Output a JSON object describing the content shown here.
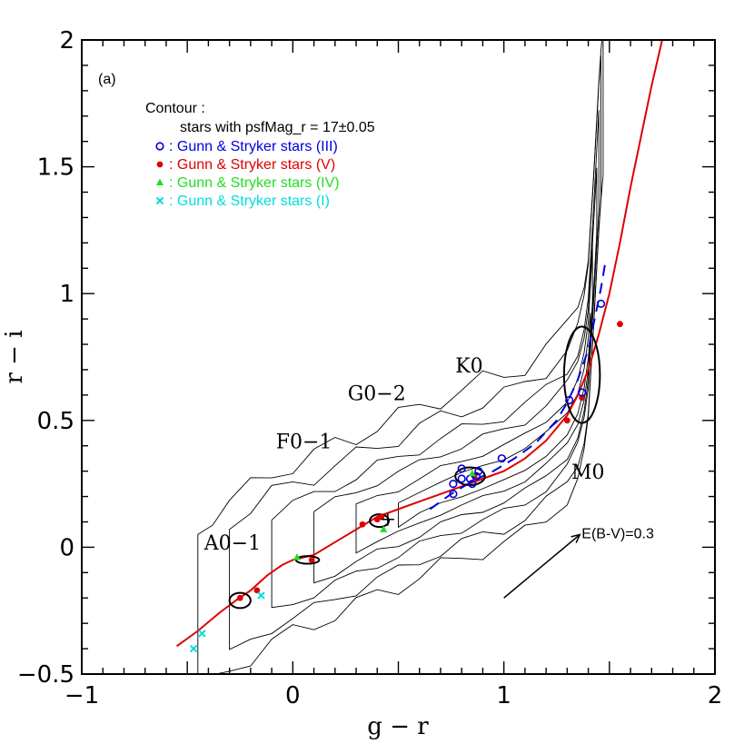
{
  "chart_data": {
    "type": "scatter",
    "panel_label": "(a)",
    "xlabel": "g − r",
    "ylabel": "r − i",
    "xlim": [
      -1,
      2
    ],
    "ylim": [
      -0.5,
      2
    ],
    "x_ticks": [
      -1,
      0,
      1,
      2
    ],
    "x_tick_labels": [
      "−1",
      "0",
      "1",
      "2"
    ],
    "y_ticks": [
      -0.5,
      0,
      0.5,
      1,
      1.5,
      2
    ],
    "y_tick_labels": [
      "−0.5",
      "0",
      "0.5",
      "1",
      "1.5",
      "2"
    ],
    "grid": false,
    "legend": {
      "placement": "top-left",
      "contour_title": "Contour :",
      "contour_desc": "stars with psfMag_r = 17±0.05",
      "entries": [
        {
          "marker": "open-circle",
          "symbol": "o",
          "label": ": Gunn & Stryker stars (III)",
          "color": "#0000dd"
        },
        {
          "marker": "filled-circle",
          "symbol": "•",
          "label": ": Gunn & Stryker stars (V)",
          "color": "#e00000"
        },
        {
          "marker": "triangle",
          "symbol": "▲",
          "label": ": Gunn & Stryker stars (IV)",
          "color": "#22dd22"
        },
        {
          "marker": "cross",
          "symbol": "×",
          "label": ": Gunn & Stryker stars (I)",
          "color": "#00dddd"
        }
      ]
    },
    "spectral_labels": [
      {
        "text": "A0−1",
        "x": -0.42,
        "y": -0.01
      },
      {
        "text": "F0−1",
        "x": -0.08,
        "y": 0.39
      },
      {
        "text": "G0−2",
        "x": 0.26,
        "y": 0.58
      },
      {
        "text": "K0",
        "x": 0.77,
        "y": 0.69
      },
      {
        "text": "M0",
        "x": 1.32,
        "y": 0.27
      }
    ],
    "reddening_vector": {
      "label": "E(B-V)=0.3",
      "from": [
        1.0,
        -0.2
      ],
      "to": [
        1.36,
        0.05
      ]
    },
    "series": [
      {
        "name": "Gunn & Stryker stars (V)",
        "marker": "filled-circle",
        "color": "#e00000",
        "points": [
          [
            -0.25,
            -0.2
          ],
          [
            -0.17,
            -0.17
          ],
          [
            0.09,
            -0.05
          ],
          [
            0.33,
            0.09
          ],
          [
            0.4,
            0.11
          ],
          [
            0.42,
            0.12
          ],
          [
            0.86,
            0.28
          ],
          [
            1.3,
            0.5
          ],
          [
            1.37,
            0.59
          ],
          [
            1.55,
            0.88
          ]
        ]
      },
      {
        "name": "Gunn & Stryker stars (III)",
        "marker": "open-circle",
        "color": "#0000dd",
        "points": [
          [
            0.76,
            0.21
          ],
          [
            0.76,
            0.25
          ],
          [
            0.8,
            0.27
          ],
          [
            0.8,
            0.31
          ],
          [
            0.84,
            0.27
          ],
          [
            0.85,
            0.25
          ],
          [
            0.87,
            0.28
          ],
          [
            0.88,
            0.3
          ],
          [
            0.99,
            0.35
          ],
          [
            1.31,
            0.58
          ],
          [
            1.37,
            0.61
          ],
          [
            1.46,
            0.96
          ]
        ]
      },
      {
        "name": "Gunn & Stryker stars (IV)",
        "marker": "triangle",
        "color": "#22dd22",
        "points": [
          [
            0.02,
            -0.04
          ],
          [
            0.43,
            0.07
          ],
          [
            0.85,
            0.29
          ]
        ]
      },
      {
        "name": "Gunn & Stryker stars (I)",
        "marker": "cross",
        "color": "#00dddd",
        "points": [
          [
            -0.47,
            -0.4
          ],
          [
            -0.43,
            -0.34
          ],
          [
            -0.15,
            -0.19
          ]
        ]
      }
    ],
    "main_sequence_locus": {
      "color": "#e00000",
      "style": "solid",
      "x": [
        -0.55,
        -0.45,
        -0.35,
        -0.27,
        -0.2,
        -0.12,
        -0.05,
        0.0,
        0.05,
        0.1,
        0.2,
        0.3,
        0.4,
        0.5,
        0.6,
        0.7,
        0.8,
        0.9,
        1.0,
        1.1,
        1.2,
        1.3,
        1.35,
        1.4,
        1.45,
        1.5,
        1.55,
        1.6,
        1.65,
        1.7,
        1.75
      ],
      "y": [
        -0.39,
        -0.33,
        -0.26,
        -0.21,
        -0.17,
        -0.11,
        -0.07,
        -0.05,
        -0.04,
        -0.03,
        0.02,
        0.07,
        0.12,
        0.15,
        0.18,
        0.21,
        0.24,
        0.27,
        0.3,
        0.35,
        0.42,
        0.52,
        0.6,
        0.7,
        0.84,
        1.0,
        1.2,
        1.42,
        1.62,
        1.82,
        2.0
      ]
    },
    "giant_locus": {
      "color": "#0000dd",
      "style": "dashed",
      "x": [
        0.65,
        0.75,
        0.85,
        0.95,
        1.05,
        1.15,
        1.25,
        1.3,
        1.35,
        1.4,
        1.43,
        1.46,
        1.48
      ],
      "y": [
        0.15,
        0.21,
        0.26,
        0.3,
        0.35,
        0.41,
        0.5,
        0.57,
        0.66,
        0.78,
        0.9,
        1.02,
        1.12
      ]
    },
    "error_ellipses": [
      {
        "cx": -0.25,
        "cy": -0.21,
        "rx": 0.05,
        "ry": 0.03,
        "angle": 0
      },
      {
        "cx": 0.07,
        "cy": -0.05,
        "rx": 0.055,
        "ry": 0.015,
        "angle": 0
      },
      {
        "cx": 0.41,
        "cy": 0.105,
        "rx": 0.045,
        "ry": 0.025,
        "angle": 0
      },
      {
        "cx": 0.84,
        "cy": 0.28,
        "rx": 0.07,
        "ry": 0.035,
        "angle": 0
      },
      {
        "cx": 1.37,
        "cy": 0.68,
        "rx": 0.085,
        "ry": 0.19,
        "angle": 0
      }
    ],
    "sun_marker": {
      "x": 0.45,
      "y": 0.11
    },
    "contours": [
      {
        "w": 0.05,
        "pts": [
          [
            0.5,
            0.12
          ],
          [
            0.6,
            0.17
          ],
          [
            0.7,
            0.21
          ],
          [
            0.8,
            0.24
          ],
          [
            0.9,
            0.27
          ],
          [
            1.0,
            0.3
          ],
          [
            1.1,
            0.34
          ],
          [
            1.2,
            0.4
          ],
          [
            1.3,
            0.48
          ],
          [
            1.35,
            0.56
          ],
          [
            1.38,
            0.66
          ],
          [
            1.4,
            0.78
          ],
          [
            1.41,
            0.88
          ]
        ]
      },
      {
        "w": 0.1,
        "pts": [
          [
            0.3,
            0.06
          ],
          [
            0.4,
            0.1
          ],
          [
            0.5,
            0.13
          ],
          [
            0.6,
            0.17
          ],
          [
            0.7,
            0.21
          ],
          [
            0.8,
            0.24
          ],
          [
            0.9,
            0.27
          ],
          [
            1.0,
            0.3
          ],
          [
            1.1,
            0.34
          ],
          [
            1.2,
            0.4
          ],
          [
            1.3,
            0.48
          ],
          [
            1.35,
            0.56
          ],
          [
            1.38,
            0.66
          ],
          [
            1.4,
            0.78
          ],
          [
            1.41,
            0.92
          ],
          [
            1.42,
            1.05
          ],
          [
            1.42,
            1.15
          ]
        ]
      },
      {
        "w": 0.16,
        "pts": [
          [
            0.1,
            -0.02
          ],
          [
            0.2,
            0.02
          ],
          [
            0.3,
            0.06
          ],
          [
            0.4,
            0.1
          ],
          [
            0.5,
            0.13
          ],
          [
            0.6,
            0.17
          ],
          [
            0.7,
            0.21
          ],
          [
            0.8,
            0.24
          ],
          [
            0.9,
            0.27
          ],
          [
            1.0,
            0.3
          ],
          [
            1.1,
            0.34
          ],
          [
            1.2,
            0.4
          ],
          [
            1.3,
            0.48
          ],
          [
            1.35,
            0.56
          ],
          [
            1.38,
            0.66
          ],
          [
            1.4,
            0.78
          ],
          [
            1.41,
            0.92
          ],
          [
            1.42,
            1.05
          ],
          [
            1.43,
            1.2
          ],
          [
            1.44,
            1.35
          ]
        ]
      },
      {
        "w": 0.22,
        "pts": [
          [
            -0.1,
            -0.09
          ],
          [
            0.0,
            -0.05
          ],
          [
            0.1,
            -0.02
          ],
          [
            0.2,
            0.02
          ],
          [
            0.3,
            0.06
          ],
          [
            0.4,
            0.1
          ],
          [
            0.5,
            0.13
          ],
          [
            0.6,
            0.17
          ],
          [
            0.7,
            0.21
          ],
          [
            0.8,
            0.24
          ],
          [
            0.9,
            0.27
          ],
          [
            1.0,
            0.3
          ],
          [
            1.1,
            0.34
          ],
          [
            1.2,
            0.4
          ],
          [
            1.3,
            0.48
          ],
          [
            1.35,
            0.56
          ],
          [
            1.38,
            0.66
          ],
          [
            1.4,
            0.78
          ],
          [
            1.41,
            0.92
          ],
          [
            1.42,
            1.05
          ],
          [
            1.43,
            1.2
          ],
          [
            1.44,
            1.35
          ],
          [
            1.45,
            1.5
          ]
        ]
      },
      {
        "w": 0.3,
        "pts": [
          [
            -0.3,
            -0.2
          ],
          [
            -0.2,
            -0.15
          ],
          [
            -0.1,
            -0.09
          ],
          [
            0.0,
            -0.05
          ],
          [
            0.1,
            -0.02
          ],
          [
            0.2,
            0.02
          ],
          [
            0.3,
            0.06
          ],
          [
            0.4,
            0.1
          ],
          [
            0.5,
            0.13
          ],
          [
            0.6,
            0.17
          ],
          [
            0.7,
            0.21
          ],
          [
            0.8,
            0.24
          ],
          [
            0.9,
            0.27
          ],
          [
            1.0,
            0.3
          ],
          [
            1.1,
            0.34
          ],
          [
            1.2,
            0.4
          ],
          [
            1.3,
            0.48
          ],
          [
            1.35,
            0.56
          ],
          [
            1.38,
            0.66
          ],
          [
            1.4,
            0.78
          ],
          [
            1.41,
            0.92
          ],
          [
            1.42,
            1.05
          ],
          [
            1.43,
            1.2
          ],
          [
            1.44,
            1.35
          ],
          [
            1.45,
            1.5
          ],
          [
            1.46,
            1.62
          ]
        ]
      },
      {
        "w": 0.38,
        "pts": [
          [
            -0.45,
            -0.3
          ],
          [
            -0.38,
            -0.25
          ],
          [
            -0.3,
            -0.2
          ],
          [
            -0.2,
            -0.15
          ],
          [
            -0.1,
            -0.09
          ],
          [
            0.0,
            -0.05
          ],
          [
            0.1,
            -0.02
          ],
          [
            0.2,
            0.02
          ],
          [
            0.3,
            0.06
          ],
          [
            0.4,
            0.1
          ],
          [
            0.5,
            0.13
          ],
          [
            0.6,
            0.17
          ],
          [
            0.7,
            0.21
          ],
          [
            0.8,
            0.24
          ],
          [
            0.9,
            0.27
          ],
          [
            1.0,
            0.3
          ],
          [
            1.1,
            0.34
          ],
          [
            1.2,
            0.4
          ],
          [
            1.3,
            0.48
          ],
          [
            1.35,
            0.56
          ],
          [
            1.38,
            0.66
          ],
          [
            1.4,
            0.78
          ],
          [
            1.41,
            0.92
          ],
          [
            1.42,
            1.05
          ],
          [
            1.43,
            1.2
          ],
          [
            1.44,
            1.35
          ],
          [
            1.45,
            1.5
          ],
          [
            1.46,
            1.62
          ],
          [
            1.47,
            1.72
          ]
        ]
      }
    ]
  }
}
